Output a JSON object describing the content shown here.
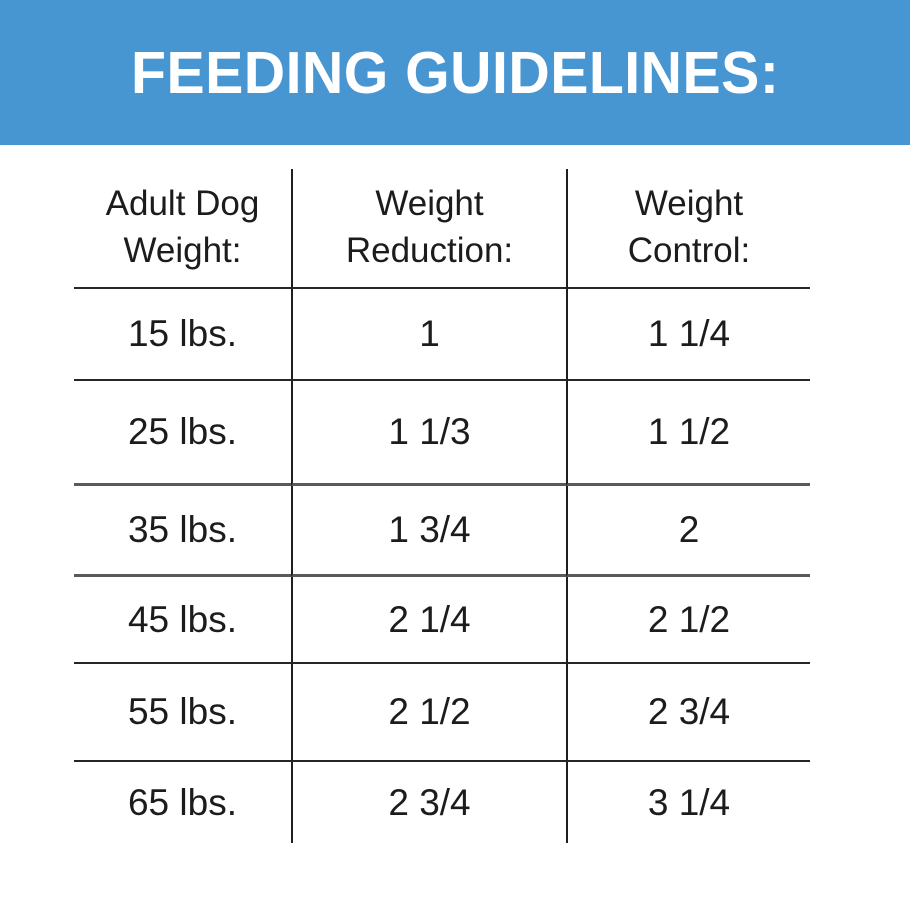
{
  "banner": {
    "title": "FEEDING GUIDELINES:",
    "background_color": "#4896d1",
    "text_color": "#ffffff"
  },
  "table": {
    "columns": [
      {
        "label": "Adult Dog Weight:",
        "lines": [
          "Adult Dog",
          "Weight:"
        ]
      },
      {
        "label": "Weight Reduction:",
        "lines": [
          "Weight",
          "Reduction:"
        ]
      },
      {
        "label": "Weight Control:",
        "lines": [
          "Weight",
          "Control:"
        ]
      }
    ],
    "rows": [
      {
        "weight": "15 lbs.",
        "weight_reduction": "1",
        "weight_control": "1 1/4"
      },
      {
        "weight": "25 lbs.",
        "weight_reduction": "1 1/3",
        "weight_control": "1 1/2"
      },
      {
        "weight": "35 lbs.",
        "weight_reduction": "1 3/4",
        "weight_control": "2"
      },
      {
        "weight": "45 lbs.",
        "weight_reduction": "2 1/4",
        "weight_control": "2 1/2"
      },
      {
        "weight": "55 lbs.",
        "weight_reduction": "2 1/2",
        "weight_control": "2 3/4"
      },
      {
        "weight": "65 lbs.",
        "weight_reduction": "2 3/4",
        "weight_control": "3 1/4"
      }
    ],
    "text_color": "#1c1c1c"
  }
}
